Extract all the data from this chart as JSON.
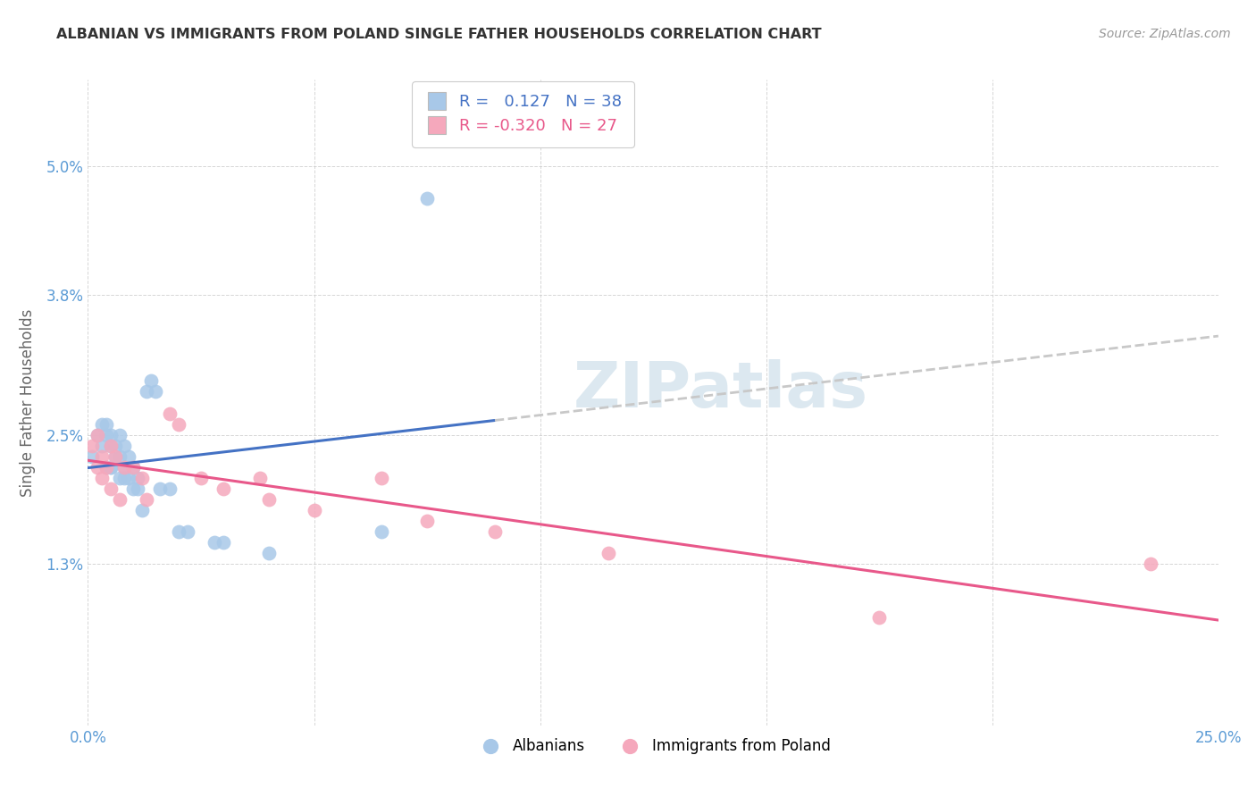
{
  "title": "ALBANIAN VS IMMIGRANTS FROM POLAND SINGLE FATHER HOUSEHOLDS CORRELATION CHART",
  "source": "Source: ZipAtlas.com",
  "ylabel": "Single Father Households",
  "xlim": [
    0.0,
    0.25
  ],
  "ylim": [
    -0.002,
    0.058
  ],
  "xtick_positions": [
    0.0,
    0.05,
    0.1,
    0.15,
    0.2,
    0.25
  ],
  "xtick_labels": [
    "0.0%",
    "",
    "",
    "",
    "",
    "25.0%"
  ],
  "ytick_positions": [
    0.013,
    0.025,
    0.038,
    0.05
  ],
  "ytick_labels": [
    "1.3%",
    "2.5%",
    "3.8%",
    "5.0%"
  ],
  "legend_r_albanian": "0.127",
  "legend_n_albanian": "38",
  "legend_r_poland": "-0.320",
  "legend_n_poland": "27",
  "albanian_color": "#a8c8e8",
  "poland_color": "#f5a8bc",
  "albanian_line_color": "#4472c4",
  "poland_line_color": "#e8588a",
  "trendline_ext_color": "#c8c8c8",
  "watermark": "ZIPatlas",
  "albanian_x": [
    0.001,
    0.002,
    0.003,
    0.003,
    0.004,
    0.004,
    0.004,
    0.005,
    0.005,
    0.005,
    0.005,
    0.006,
    0.006,
    0.007,
    0.007,
    0.007,
    0.008,
    0.008,
    0.008,
    0.009,
    0.009,
    0.01,
    0.01,
    0.011,
    0.011,
    0.012,
    0.013,
    0.014,
    0.015,
    0.016,
    0.018,
    0.02,
    0.022,
    0.028,
    0.03,
    0.04,
    0.065,
    0.075
  ],
  "albanian_y": [
    0.023,
    0.025,
    0.024,
    0.026,
    0.022,
    0.025,
    0.026,
    0.022,
    0.024,
    0.025,
    0.022,
    0.023,
    0.024,
    0.021,
    0.023,
    0.025,
    0.021,
    0.022,
    0.024,
    0.021,
    0.023,
    0.02,
    0.022,
    0.021,
    0.02,
    0.018,
    0.029,
    0.03,
    0.029,
    0.02,
    0.02,
    0.016,
    0.016,
    0.015,
    0.015,
    0.014,
    0.016,
    0.047
  ],
  "poland_x": [
    0.001,
    0.002,
    0.002,
    0.003,
    0.003,
    0.004,
    0.005,
    0.005,
    0.006,
    0.007,
    0.008,
    0.01,
    0.012,
    0.013,
    0.018,
    0.02,
    0.025,
    0.03,
    0.038,
    0.04,
    0.05,
    0.065,
    0.075,
    0.09,
    0.115,
    0.175,
    0.235
  ],
  "poland_y": [
    0.024,
    0.022,
    0.025,
    0.023,
    0.021,
    0.022,
    0.024,
    0.02,
    0.023,
    0.019,
    0.022,
    0.022,
    0.021,
    0.019,
    0.027,
    0.026,
    0.021,
    0.02,
    0.021,
    0.019,
    0.018,
    0.021,
    0.017,
    0.016,
    0.014,
    0.008,
    0.013
  ]
}
